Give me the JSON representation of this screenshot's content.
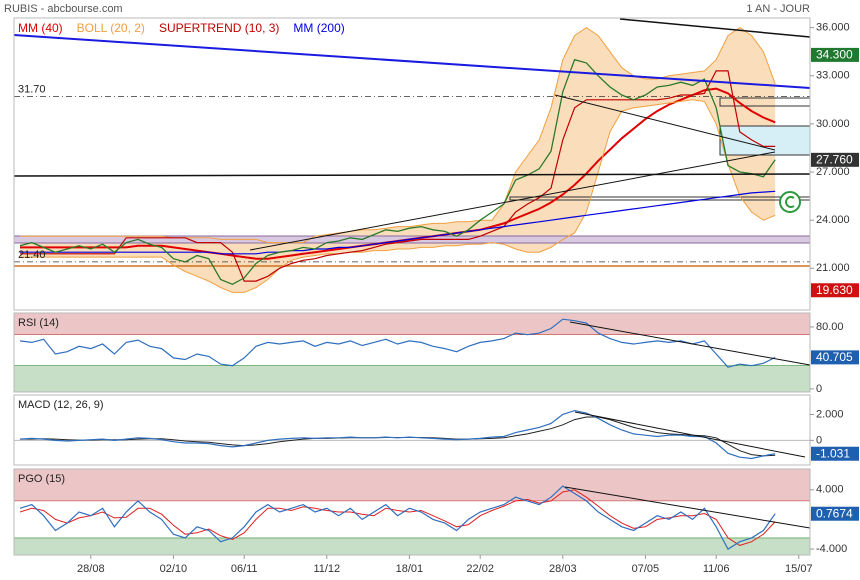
{
  "chart_data": [
    {
      "type": "line",
      "title": "RUBIS - abcbourse.com",
      "subtitle": "1 AN - JOUR",
      "categories": [
        null,
        null,
        null,
        null,
        null,
        null,
        "28/08",
        null,
        null,
        null,
        null,
        null,
        null,
        "02/10",
        null,
        null,
        null,
        null,
        null,
        "06/11",
        null,
        null,
        null,
        null,
        null,
        null,
        "11/12",
        null,
        null,
        null,
        null,
        null,
        null,
        "18/01",
        null,
        null,
        null,
        null,
        null,
        "22/02",
        null,
        null,
        null,
        null,
        null,
        null,
        "28/03",
        null,
        null,
        null,
        null,
        null,
        null,
        "07/05",
        null,
        null,
        null,
        null,
        null,
        "11/06",
        null,
        null,
        null,
        null,
        null,
        null,
        "15/07"
      ],
      "values": [
        22.4,
        22.6,
        22.3,
        22.0,
        22.2,
        22.4,
        22.2,
        22.5,
        22.0,
        22.6,
        22.8,
        22.5,
        22.3,
        21.6,
        21.4,
        21.8,
        21.6,
        20.3,
        20.0,
        20.4,
        21.3,
        21.8,
        22.0,
        22.1,
        22.3,
        22.2,
        22.6,
        22.7,
        22.9,
        22.8,
        23.1,
        23.4,
        23.3,
        23.5,
        23.6,
        23.4,
        23.3,
        23.0,
        23.4,
        24.0,
        24.5,
        25.0,
        26.5,
        26.8,
        27.2,
        28.3,
        32.0,
        34.0,
        33.8,
        33.0,
        32.3,
        31.8,
        31.5,
        31.8,
        32.3,
        32.4,
        32.6,
        32.4,
        32.8,
        31.0,
        27.4,
        27.0,
        26.9,
        26.7,
        27.76,
        null,
        null
      ],
      "color": "#2b7a2b",
      "series": [
        {
          "name": "MM (40)",
          "color": "#e00000",
          "values": [
            22.3,
            22.3,
            22.3,
            22.3,
            22.3,
            22.3,
            22.3,
            22.3,
            22.3,
            22.3,
            22.4,
            22.4,
            22.4,
            22.3,
            22.2,
            22.1,
            22.0,
            21.9,
            21.8,
            21.7,
            21.6,
            21.6,
            21.7,
            21.8,
            21.9,
            22.0,
            22.1,
            22.2,
            22.3,
            22.4,
            22.5,
            22.6,
            22.7,
            22.8,
            22.9,
            23.0,
            23.1,
            23.2,
            23.3,
            23.4,
            23.6,
            23.8,
            24.1,
            24.4,
            24.7,
            25.1,
            25.6,
            26.2,
            26.9,
            27.7,
            28.4,
            29.1,
            29.7,
            30.3,
            30.8,
            31.2,
            31.5,
            31.8,
            32.1,
            32.2,
            31.9,
            31.3,
            30.8,
            30.4,
            30.1,
            null,
            null
          ]
        },
        {
          "name": "BOLL (20, 2)",
          "color": "#f0a040",
          "values": [
            23.0,
            23.0,
            23.0,
            23.0,
            23.0,
            23.0,
            23.0,
            23.0,
            23.0,
            23.0,
            23.0,
            23.0,
            23.0,
            22.9,
            22.9,
            22.9,
            22.9,
            22.8,
            22.8,
            22.8,
            22.8,
            22.6,
            22.6,
            22.6,
            22.6,
            23.0,
            23.1,
            23.2,
            23.3,
            23.4,
            23.4,
            23.5,
            23.6,
            23.6,
            23.7,
            23.8,
            23.8,
            23.9,
            23.9,
            24.0,
            24.0,
            25.0,
            27.0,
            28.0,
            29.0,
            31.0,
            34.0,
            35.5,
            36.0,
            35.5,
            34.5,
            33.5,
            33.0,
            32.8,
            32.8,
            33.0,
            33.1,
            33.2,
            33.3,
            34.0,
            35.5,
            36.0,
            35.5,
            34.5,
            32.5,
            null,
            null
          ],
          "lower": [
            21.7,
            21.7,
            21.7,
            21.7,
            21.7,
            21.7,
            21.7,
            21.7,
            21.7,
            21.7,
            21.7,
            21.7,
            21.7,
            21.2,
            20.8,
            20.5,
            20.2,
            19.8,
            19.5,
            19.5,
            19.8,
            20.3,
            21.0,
            21.5,
            21.7,
            21.8,
            21.9,
            21.9,
            22.0,
            22.0,
            22.1,
            22.1,
            22.2,
            22.2,
            22.3,
            22.3,
            22.4,
            22.4,
            22.5,
            22.5,
            22.6,
            22.5,
            22.2,
            22.0,
            22.0,
            22.3,
            22.8,
            23.2,
            24.5,
            27.0,
            29.5,
            30.8,
            31.0,
            31.1,
            31.2,
            31.3,
            31.4,
            31.5,
            31.4,
            30.0,
            27.5,
            25.5,
            24.5,
            24.0,
            24.3,
            null,
            null
          ]
        },
        {
          "name": "SUPERTREND (10, 3)",
          "color": "#c00000",
          "values": [
            21.9,
            21.9,
            21.9,
            21.9,
            21.9,
            21.9,
            21.9,
            21.9,
            21.9,
            22.9,
            22.9,
            22.9,
            22.9,
            22.9,
            22.9,
            22.6,
            22.6,
            22.6,
            22.0,
            20.2,
            20.2,
            20.5,
            21.0,
            21.3,
            21.5,
            21.6,
            21.8,
            21.9,
            22.0,
            22.1,
            22.3,
            22.5,
            22.6,
            22.7,
            22.8,
            22.8,
            22.8,
            22.8,
            22.8,
            23.0,
            23.3,
            23.6,
            24.5,
            25.0,
            25.4,
            26.0,
            29.0,
            31.0,
            31.5,
            31.5,
            31.5,
            31.5,
            31.5,
            31.5,
            31.5,
            31.6,
            31.8,
            31.8,
            31.9,
            33.3,
            33.3,
            29.5,
            29.0,
            28.6,
            28.6,
            null,
            null
          ]
        },
        {
          "name": "MM (200)",
          "color": "#0000e0",
          "values": [
            22.0,
            22.0,
            22.0,
            22.0,
            22.0,
            22.0,
            22.0,
            22.0,
            22.0,
            22.0,
            22.0,
            22.0,
            22.0,
            22.0,
            22.0,
            22.0,
            22.0,
            21.9,
            21.9,
            21.9,
            21.9,
            22.0,
            22.0,
            22.1,
            22.1,
            22.2,
            22.2,
            22.3,
            22.3,
            22.4,
            22.5,
            22.6,
            22.7,
            22.8,
            22.9,
            23.0,
            23.1,
            23.2,
            23.3,
            23.4,
            23.5,
            23.6,
            23.7,
            23.8,
            23.9,
            24.0,
            24.1,
            24.2,
            24.3,
            24.4,
            24.5,
            24.6,
            24.7,
            24.8,
            24.9,
            25.0,
            25.1,
            25.2,
            25.3,
            25.4,
            25.5,
            25.6,
            25.7,
            25.75,
            25.8,
            null,
            null
          ]
        }
      ],
      "ylim": [
        18.4,
        36.6
      ],
      "yticks": [
        {
          "value": 36,
          "label": "36.000"
        },
        {
          "value": 33,
          "label": "33.000"
        },
        {
          "value": 30,
          "label": "30.000"
        },
        {
          "value": 27,
          "label": "27.000"
        },
        {
          "value": 24,
          "label": "24.000"
        },
        {
          "value": 21,
          "label": "21.000"
        }
      ],
      "annotations": [
        {
          "value": 31.7,
          "label": "31.70"
        },
        {
          "value": 21.4,
          "label": "21.40"
        }
      ],
      "badges": [
        {
          "value": 34.3,
          "label": "34.300",
          "color": "#1f7a30"
        },
        {
          "value": 27.76,
          "label": "27.760",
          "color": "#333333"
        },
        {
          "value": 19.63,
          "label": "19.630",
          "color": "#d01010"
        }
      ]
    },
    {
      "type": "line",
      "title": "RSI (14)",
      "color": "#2f6fc0",
      "values": [
        62,
        60,
        64,
        45,
        48,
        55,
        52,
        58,
        45,
        60,
        63,
        55,
        52,
        40,
        38,
        45,
        42,
        32,
        30,
        40,
        55,
        60,
        58,
        60,
        62,
        55,
        60,
        58,
        62,
        56,
        60,
        64,
        58,
        62,
        60,
        55,
        52,
        48,
        55,
        60,
        62,
        65,
        72,
        70,
        72,
        78,
        90,
        88,
        85,
        72,
        65,
        60,
        58,
        60,
        62,
        60,
        62,
        58,
        62,
        45,
        28,
        32,
        30,
        33,
        40.7,
        null,
        null
      ],
      "ylim": [
        -4,
        98
      ],
      "yticks": [
        {
          "value": 80,
          "label": "80.00"
        },
        0
      ],
      "zones": [
        30,
        70
      ],
      "badges": [
        {
          "value": 40.705,
          "color": "#1f5fb0"
        }
      ]
    },
    {
      "type": "line",
      "title": "MACD (12, 26, 9)",
      "color": "#2f6fc0",
      "values": [
        0.1,
        0.15,
        0.1,
        0,
        -0.05,
        0,
        0.05,
        0.1,
        0,
        0.1,
        0.2,
        0.15,
        0.05,
        -0.1,
        -0.2,
        -0.2,
        -0.25,
        -0.4,
        -0.5,
        -0.4,
        -0.2,
        0,
        0.1,
        0.15,
        0.2,
        0.15,
        0.2,
        0.2,
        0.25,
        0.2,
        0.2,
        0.25,
        0.2,
        0.25,
        0.2,
        0.15,
        0.1,
        0.05,
        0.1,
        0.15,
        0.25,
        0.3,
        0.6,
        0.8,
        1.0,
        1.3,
        2.0,
        2.3,
        2.1,
        1.7,
        1.2,
        0.8,
        0.5,
        0.4,
        0.3,
        0.4,
        0.4,
        0.3,
        0.3,
        -0.2,
        -1.0,
        -1.3,
        -1.4,
        -1.2,
        -1.031,
        null,
        null
      ],
      "signal": [
        0.1,
        0.1,
        0.12,
        0.1,
        0.05,
        0.02,
        0.02,
        0.05,
        0.05,
        0.05,
        0.1,
        0.13,
        0.12,
        0.05,
        -0.05,
        -0.1,
        -0.15,
        -0.25,
        -0.35,
        -0.4,
        -0.35,
        -0.25,
        -0.1,
        0,
        0.1,
        0.15,
        0.15,
        0.18,
        0.2,
        0.2,
        0.2,
        0.22,
        0.22,
        0.22,
        0.22,
        0.2,
        0.15,
        0.1,
        0.1,
        0.12,
        0.15,
        0.2,
        0.35,
        0.5,
        0.7,
        0.9,
        1.2,
        1.6,
        1.8,
        1.8,
        1.6,
        1.3,
        1.0,
        0.8,
        0.6,
        0.5,
        0.45,
        0.4,
        0.35,
        0.2,
        -0.3,
        -0.8,
        -1.1,
        -1.2,
        -1.15,
        null,
        null
      ],
      "signal_color": "#222222",
      "ylim": [
        -1.9,
        3.5
      ],
      "yticks": [
        {
          "value": 2,
          "label": "2.000"
        },
        0
      ],
      "badges": [
        {
          "value": -1.031,
          "color": "#1f5fb0"
        }
      ]
    },
    {
      "type": "line",
      "title": "PGO (15)",
      "color": "#2f6fc0",
      "values": [
        1.5,
        2,
        0.5,
        -1.5,
        -0.5,
        1,
        0.5,
        1.5,
        -1,
        1,
        2.5,
        1,
        0,
        -2,
        -2.5,
        -1,
        -1.5,
        -3,
        -2.5,
        -1,
        1,
        2,
        1,
        1.5,
        2,
        1,
        1.5,
        0.5,
        1.5,
        0,
        1,
        2,
        0.5,
        1.5,
        1,
        0,
        -0.5,
        -1.5,
        0,
        1,
        1.5,
        2,
        3,
        2.5,
        2,
        3,
        4.5,
        3.5,
        2.5,
        1,
        0,
        -1,
        -1.5,
        -0.5,
        0.5,
        0,
        1,
        0,
        1.5,
        -1,
        -4,
        -3,
        -2.5,
        -1.5,
        0.7674,
        null,
        null
      ],
      "signal": [
        1,
        1.5,
        1.2,
        0,
        -0.5,
        0.2,
        0.5,
        1,
        0.2,
        0.3,
        1.5,
        1.5,
        0.7,
        -0.8,
        -2,
        -1.8,
        -1.3,
        -2.2,
        -2.7,
        -1.8,
        0,
        1.5,
        1.5,
        1.2,
        1.7,
        1.5,
        1.2,
        1,
        1,
        0.7,
        0.5,
        1.5,
        1.2,
        1,
        1.2,
        0.5,
        -0.2,
        -1,
        -0.7,
        0.5,
        1.2,
        1.8,
        2.5,
        2.7,
        2.2,
        2.5,
        3.7,
        4,
        3,
        1.8,
        0.5,
        -0.5,
        -1.2,
        -1,
        0,
        0.2,
        0.5,
        0.5,
        0.8,
        0,
        -2.5,
        -3.5,
        -3,
        -2,
        -0.3,
        null,
        null
      ],
      "signal_color": "#e02020",
      "ylim": [
        -4.8,
        6.8
      ],
      "yticks": [
        {
          "value": 4,
          "label": "4.000"
        },
        {
          "value": -4,
          "label": "-4.000"
        }
      ],
      "zones": [
        -2.5,
        2.5
      ],
      "badges": [
        {
          "value": 0.7674,
          "color": "#1f5fb0"
        }
      ]
    }
  ]
}
